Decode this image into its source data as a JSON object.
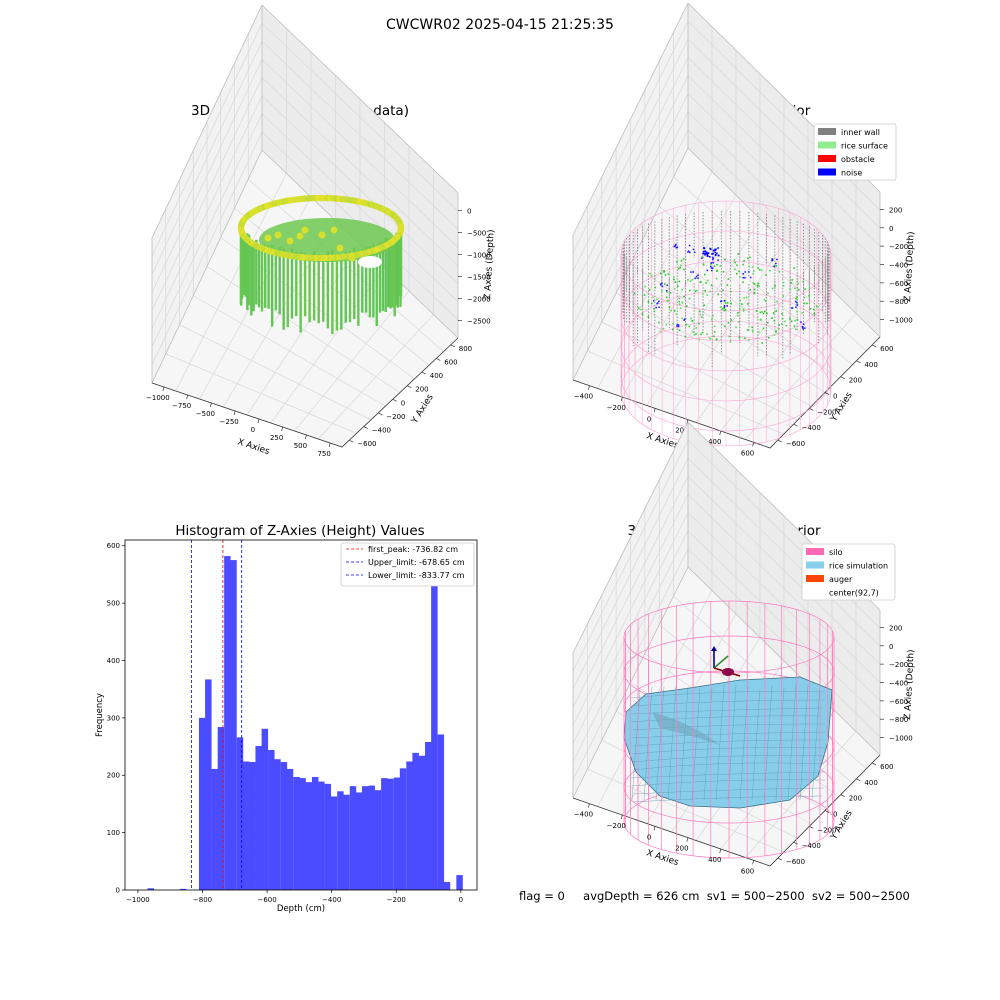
{
  "figure": {
    "suptitle": "CWCWR02 2025-04-15 21:25:35",
    "footer": {
      "flag": "flag = 0",
      "avg": "avgDepth = 626 cm",
      "sv1": "sv1 = 500~2500",
      "sv2": "sv2 = 500~2500"
    }
  },
  "chart_data": [
    {
      "type": "scatter",
      "subtype": "3d",
      "title": "3D Plot of Silo Interior(row data)",
      "xlabel": "X Axies",
      "ylabel": "Y Axies",
      "zlabel": "Z Axies (Depth)",
      "x_ticks": [
        "−1000",
        "−750",
        "−500",
        "−250",
        "0",
        "250",
        "500",
        "750"
      ],
      "y_ticks": [
        "−600",
        "−400",
        "−200",
        "0",
        "200",
        "400",
        "600",
        "800"
      ],
      "z_ticks": [
        "0",
        "−500",
        "−1000",
        "−1500",
        "−2000",
        "−2500"
      ],
      "colormap": "viridis",
      "grid": true
    },
    {
      "type": "scatter",
      "subtype": "3d",
      "title": "3D classify of Silo Interior",
      "xlabel": "X Axies",
      "ylabel": "Y Axies",
      "zlabel": "Z Axies (Depth)",
      "x_ticks": [
        "−400",
        "−200",
        "0",
        "200",
        "400",
        "600"
      ],
      "y_ticks": [
        "−600",
        "−400",
        "−200",
        "0",
        "200",
        "400",
        "600"
      ],
      "z_ticks": [
        "200",
        "0",
        "−200",
        "−400",
        "−600",
        "−800",
        "−1000"
      ],
      "legend": [
        {
          "name": "inner wall",
          "color": "#808080"
        },
        {
          "name": "rice surface",
          "color": "#90ee90"
        },
        {
          "name": "obstacle",
          "color": "#ff0000"
        },
        {
          "name": "noise",
          "color": "#0000ff"
        }
      ],
      "legend_position": "top-right",
      "grid": true
    },
    {
      "type": "bar",
      "subtype": "histogram",
      "title": "Histogram of Z-Axies (Height) Values",
      "xlabel": "Depth (cm)",
      "ylabel": "Frequency",
      "xlim": [
        -1040,
        50
      ],
      "ylim": [
        0,
        610
      ],
      "x_ticks": [
        -1000,
        -800,
        -600,
        -400,
        -200,
        0
      ],
      "x_tick_labels": [
        "−1000",
        "−800",
        "−600",
        "−400",
        "−200",
        "0"
      ],
      "y_ticks": [
        0,
        100,
        200,
        300,
        400,
        500,
        600
      ],
      "bar_color": "#4b4bff",
      "bin_width": 19.4,
      "bins": [
        {
          "x": -1000,
          "v": 0
        },
        {
          "x": -970,
          "v": 3
        },
        {
          "x": -950,
          "v": 0
        },
        {
          "x": -870,
          "v": 2
        },
        {
          "x": -851,
          "v": 0
        },
        {
          "x": -831,
          "v": 0
        },
        {
          "x": -811,
          "v": 300
        },
        {
          "x": -792,
          "v": 367
        },
        {
          "x": -772,
          "v": 211
        },
        {
          "x": -753,
          "v": 284
        },
        {
          "x": -733,
          "v": 582
        },
        {
          "x": -714,
          "v": 575
        },
        {
          "x": -694,
          "v": 266
        },
        {
          "x": -675,
          "v": 224
        },
        {
          "x": -656,
          "v": 223
        },
        {
          "x": -636,
          "v": 251
        },
        {
          "x": -617,
          "v": 281
        },
        {
          "x": -597,
          "v": 244
        },
        {
          "x": -578,
          "v": 228
        },
        {
          "x": -558,
          "v": 223
        },
        {
          "x": -539,
          "v": 211
        },
        {
          "x": -519,
          "v": 197
        },
        {
          "x": -500,
          "v": 195
        },
        {
          "x": -481,
          "v": 188
        },
        {
          "x": -461,
          "v": 197
        },
        {
          "x": -442,
          "v": 189
        },
        {
          "x": -422,
          "v": 185
        },
        {
          "x": -403,
          "v": 163
        },
        {
          "x": -383,
          "v": 172
        },
        {
          "x": -364,
          "v": 166
        },
        {
          "x": -344,
          "v": 181
        },
        {
          "x": -325,
          "v": 170
        },
        {
          "x": -306,
          "v": 181
        },
        {
          "x": -286,
          "v": 182
        },
        {
          "x": -267,
          "v": 174
        },
        {
          "x": -247,
          "v": 195
        },
        {
          "x": -228,
          "v": 194
        },
        {
          "x": -208,
          "v": 196
        },
        {
          "x": -189,
          "v": 212
        },
        {
          "x": -169,
          "v": 224
        },
        {
          "x": -150,
          "v": 239
        },
        {
          "x": -131,
          "v": 234
        },
        {
          "x": -111,
          "v": 258
        },
        {
          "x": -92,
          "v": 537
        },
        {
          "x": -72,
          "v": 271
        },
        {
          "x": -53,
          "v": 14
        },
        {
          "x": -33,
          "v": 0
        },
        {
          "x": -14,
          "v": 26
        }
      ],
      "lines": [
        {
          "label": "first_peak: -736.82 cm",
          "x": -736.82,
          "color": "#ff0000"
        },
        {
          "label": "Upper_limit: -678.65 cm",
          "x": -678.65,
          "color": "#0000ff"
        },
        {
          "label": "Lower_limit: -833.77 cm",
          "x": -833.77,
          "color": "#0000ff"
        }
      ],
      "legend_position": "top-right",
      "grid": false
    },
    {
      "type": "other",
      "subtype": "3d surface",
      "title": "3D simulation of Silo Interior",
      "xlabel": "X Axies",
      "ylabel": "Y Axies",
      "zlabel": "Z Axies (Depth)",
      "x_ticks": [
        "−400",
        "−200",
        "0",
        "200",
        "400",
        "600"
      ],
      "y_ticks": [
        "−600",
        "−400",
        "−200",
        "0",
        "200",
        "400",
        "600"
      ],
      "z_ticks": [
        "200",
        "0",
        "−200",
        "−400",
        "−600",
        "−800",
        "−1000"
      ],
      "legend": [
        {
          "name": "silo",
          "color": "#ff69b4"
        },
        {
          "name": "rice simulation",
          "color": "#87ceeb"
        },
        {
          "name": "auger",
          "color": "#ff4500"
        },
        {
          "name": "center(92,7)",
          "color": ""
        }
      ],
      "legend_position": "top-right",
      "grid": true
    }
  ]
}
